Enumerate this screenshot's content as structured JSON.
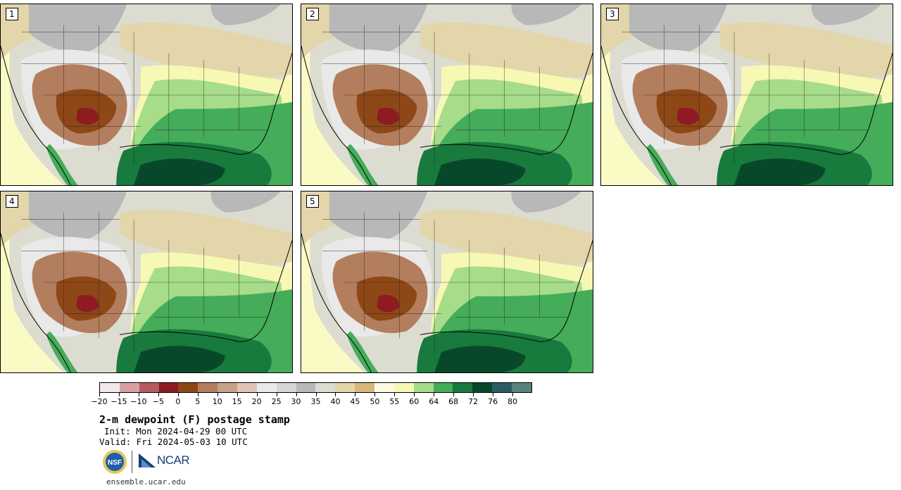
{
  "stamps": [
    {
      "label": "1"
    },
    {
      "label": "2"
    },
    {
      "label": "3"
    },
    {
      "label": "4"
    },
    {
      "label": "5"
    }
  ],
  "colorbar": {
    "colors": [
      "#f4e8e8",
      "#d9a0a3",
      "#b85b60",
      "#8e1a22",
      "#8e4716",
      "#b37e5d",
      "#c8a188",
      "#e0c4b6",
      "#e9e9e9",
      "#d6d6d6",
      "#b8b8b8",
      "#dddcd1",
      "#e2d6aa",
      "#d7b77a",
      "#fbfbe2",
      "#f7f8b4",
      "#a6dc8a",
      "#45ac5a",
      "#187a3d",
      "#08482a",
      "#2a5d62",
      "#57827f"
    ],
    "ticks": [
      "−20",
      "−15",
      "−10",
      "−5",
      "0",
      "5",
      "10",
      "15",
      "20",
      "25",
      "30",
      "35",
      "40",
      "45",
      "50",
      "55",
      "60",
      "64",
      "68",
      "72",
      "76",
      "80"
    ]
  },
  "title": "2-m dewpoint (F) postage stamp",
  "init": "Init: Mon 2024-04-29 00 UTC",
  "valid": "Valid: Fri 2024-05-03 10 UTC",
  "logos": {
    "nsf": "NSF",
    "ncar": "NCAR"
  },
  "site": "ensemble.ucar.edu"
}
